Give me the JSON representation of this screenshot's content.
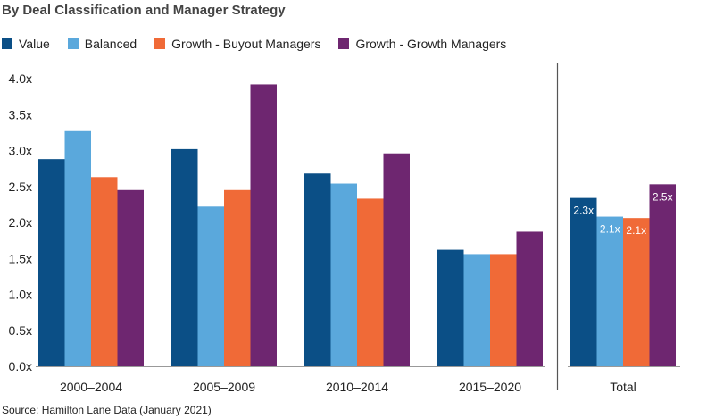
{
  "title": "By Deal Classification and Manager Strategy",
  "source": "Source: Hamilton Lane Data (January 2021)",
  "colors": {
    "value": "#0b4f86",
    "balanced": "#5aa8dc",
    "growth_buyout": "#f06a37",
    "growth_growth": "#6e2670",
    "divider": "#555555",
    "axis": "#999999"
  },
  "chart_data": {
    "type": "bar",
    "grid": false,
    "legend_position": "top-left",
    "ylim": [
      0,
      4
    ],
    "yticks": [
      {
        "value": 0.0,
        "label": "0.0x"
      },
      {
        "value": 0.5,
        "label": "0.5x"
      },
      {
        "value": 1.0,
        "label": "1.0x"
      },
      {
        "value": 1.5,
        "label": "1.5x"
      },
      {
        "value": 2.0,
        "label": "2.0x"
      },
      {
        "value": 2.5,
        "label": "2.5x"
      },
      {
        "value": 3.0,
        "label": "3.0x"
      },
      {
        "value": 3.5,
        "label": "3.5x"
      },
      {
        "value": 4.0,
        "label": "4.0x"
      }
    ],
    "categories": [
      "2000–2004",
      "2005–2009",
      "2010–2014",
      "2015–2020",
      "Total"
    ],
    "series": [
      {
        "name": "Value",
        "color_key": "value",
        "values": [
          2.88,
          3.02,
          2.68,
          1.62,
          2.34
        ],
        "data_labels": [
          "",
          "",
          "",
          "",
          "2.3x"
        ]
      },
      {
        "name": "Balanced",
        "color_key": "balanced",
        "values": [
          3.27,
          2.22,
          2.54,
          1.56,
          2.08
        ],
        "data_labels": [
          "",
          "",
          "",
          "",
          "2.1x"
        ]
      },
      {
        "name": "Growth - Buyout Managers",
        "color_key": "growth_buyout",
        "values": [
          2.63,
          2.45,
          2.33,
          1.56,
          2.06
        ],
        "data_labels": [
          "",
          "",
          "",
          "",
          "2.1x"
        ]
      },
      {
        "name": "Growth - Growth Managers",
        "color_key": "growth_growth",
        "values": [
          2.45,
          3.92,
          2.96,
          1.87,
          2.53
        ],
        "data_labels": [
          "",
          "",
          "",
          "",
          "2.5x"
        ]
      }
    ]
  }
}
